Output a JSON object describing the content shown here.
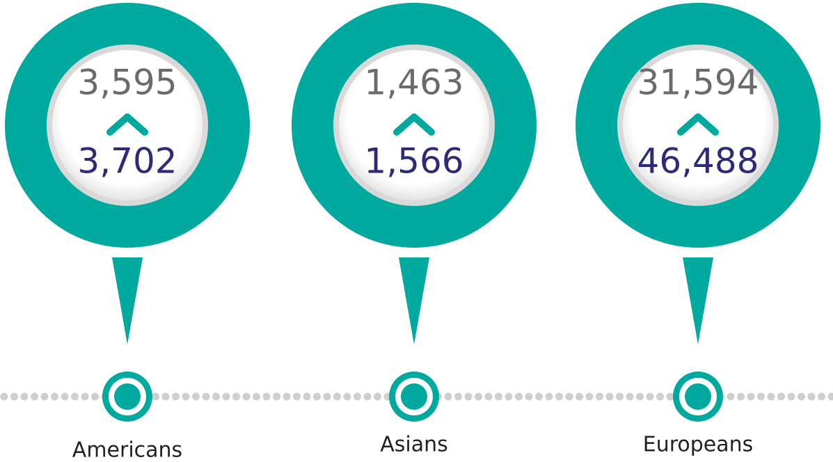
{
  "items": [
    {
      "label": "Americans",
      "before": "3,595",
      "after": "3,702"
    },
    {
      "label": "Asians",
      "before": "1,463",
      "after": "1,566"
    },
    {
      "label": "Europeans",
      "before": "31,594",
      "after": "46,488"
    }
  ]
}
